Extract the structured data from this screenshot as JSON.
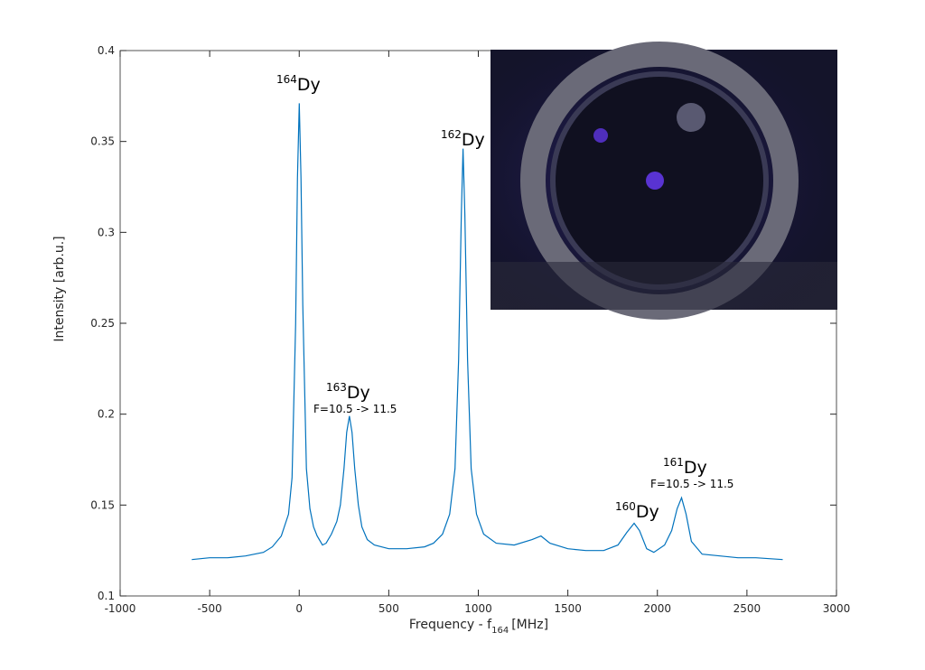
{
  "chart_data": {
    "type": "line",
    "xlabel": "Frequency - f",
    "xlabel_sub": "164",
    "xlabel_unit": "[MHz]",
    "ylabel": "Intensity [arb.u.]",
    "x": [
      -600,
      -500,
      -400,
      -300,
      -200,
      -150,
      -100,
      -60,
      -40,
      -20,
      -10,
      0,
      10,
      20,
      40,
      60,
      80,
      100,
      130,
      150,
      180,
      210,
      230,
      250,
      265,
      280,
      295,
      310,
      330,
      350,
      380,
      420,
      500,
      600,
      700,
      750,
      800,
      840,
      870,
      890,
      905,
      915,
      925,
      940,
      960,
      990,
      1030,
      1100,
      1200,
      1300,
      1350,
      1400,
      1500,
      1600,
      1700,
      1780,
      1830,
      1870,
      1900,
      1940,
      1980,
      2040,
      2080,
      2110,
      2135,
      2160,
      2190,
      2250,
      2350,
      2450,
      2550,
      2700
    ],
    "values": [
      0.12,
      0.121,
      0.121,
      0.122,
      0.124,
      0.127,
      0.133,
      0.145,
      0.165,
      0.25,
      0.33,
      0.371,
      0.33,
      0.26,
      0.17,
      0.148,
      0.138,
      0.133,
      0.128,
      0.129,
      0.134,
      0.141,
      0.15,
      0.17,
      0.19,
      0.199,
      0.19,
      0.17,
      0.15,
      0.138,
      0.131,
      0.128,
      0.126,
      0.126,
      0.127,
      0.129,
      0.134,
      0.145,
      0.17,
      0.23,
      0.31,
      0.346,
      0.31,
      0.23,
      0.17,
      0.145,
      0.134,
      0.129,
      0.128,
      0.131,
      0.133,
      0.129,
      0.126,
      0.125,
      0.125,
      0.128,
      0.135,
      0.14,
      0.136,
      0.126,
      0.124,
      0.128,
      0.136,
      0.148,
      0.154,
      0.145,
      0.13,
      0.123,
      0.122,
      0.121,
      0.121,
      0.12
    ],
    "color": "#0072bd",
    "xlim": [
      -1000,
      3000
    ],
    "xticks": [
      -1000,
      -500,
      0,
      500,
      1000,
      1500,
      2000,
      2500,
      3000
    ],
    "ylim": [
      0.1,
      0.4
    ],
    "yticks": [
      0.1,
      0.15,
      0.2,
      0.25,
      0.3,
      0.35,
      0.4
    ],
    "annotations": [
      {
        "mass": "164",
        "label": "Dy"
      },
      {
        "mass": "163",
        "label": "Dy",
        "note": "F=10.5 -> 11.5"
      },
      {
        "mass": "162",
        "label": "Dy"
      },
      {
        "mass": "160",
        "label": "Dy"
      },
      {
        "mass": "161",
        "label": "Dy",
        "note": "F=10.5 -> 11.5"
      }
    ]
  }
}
